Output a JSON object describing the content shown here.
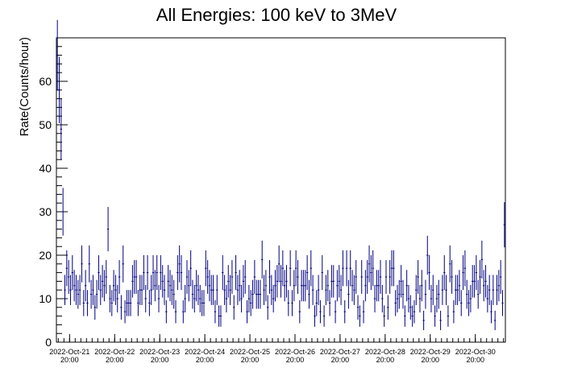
{
  "chart_data": {
    "type": "scatter",
    "title": "All Energies:  100 keV to 3MeV",
    "xlabel": "",
    "ylabel": "Rate(Counts/hour)",
    "ylim": [
      0,
      70
    ],
    "xlim": [
      "2022-10-21T13:00",
      "2022-10-31T12:00"
    ],
    "yticks": [
      0,
      10,
      20,
      30,
      40,
      50,
      60
    ],
    "xticks": [
      {
        "date": "2022-Oct-21",
        "time": "20:00"
      },
      {
        "date": "2022-Oct-22",
        "time": "20:00"
      },
      {
        "date": "2022-Oct-23",
        "time": "20:00"
      },
      {
        "date": "2022-Oct-24",
        "time": "20:00"
      },
      {
        "date": "2022-Oct-25",
        "time": "20:00"
      },
      {
        "date": "2022-Oct-26",
        "time": "20:00"
      },
      {
        "date": "2022-Oct-27",
        "time": "20:00"
      },
      {
        "date": "2022-Oct-28",
        "time": "20:00"
      },
      {
        "date": "2022-Oct-29",
        "time": "20:00"
      },
      {
        "date": "2022-Oct-30",
        "time": "20:00"
      }
    ],
    "binning": "hourly",
    "marker": "error bars",
    "grid": false,
    "legend": "none",
    "color": "#000080",
    "notable_points": [
      {
        "x": "2022-10-21 13:30",
        "y": 66
      },
      {
        "x": "2022-10-21 14:30",
        "y": 58
      },
      {
        "x": "2022-10-21 15:30",
        "y": 49
      },
      {
        "x": "2022-10-21 16:30",
        "y": 30
      },
      {
        "x": "2022-10-22 16:30",
        "y": 26
      },
      {
        "x": "2022-10-23 00:30",
        "y": 18
      },
      {
        "x": "2022-10-29 18:30",
        "y": 20
      },
      {
        "x": "2022-10-31 11:30",
        "y": 27
      }
    ],
    "typical_range": [
      4,
      20
    ],
    "mean": 12
  }
}
